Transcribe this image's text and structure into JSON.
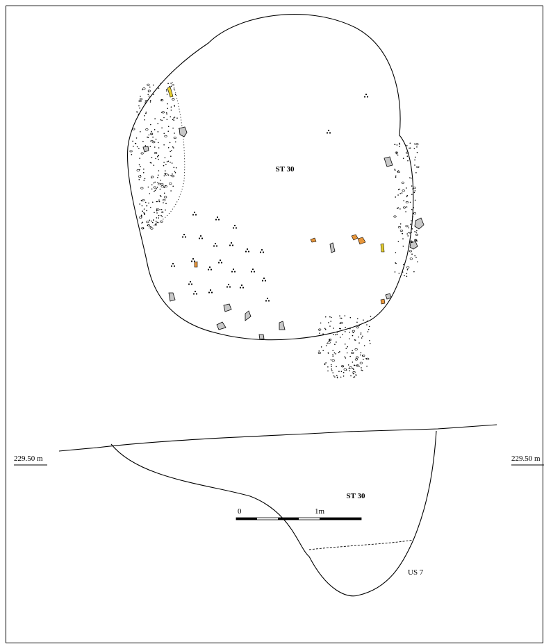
{
  "plan": {
    "label": "ST 30"
  },
  "section": {
    "label": "ST 30",
    "elevations": [
      "229.50 m",
      "229.50 m"
    ],
    "layer": "US 7"
  },
  "scale": {
    "start": "0",
    "end": "1m"
  }
}
